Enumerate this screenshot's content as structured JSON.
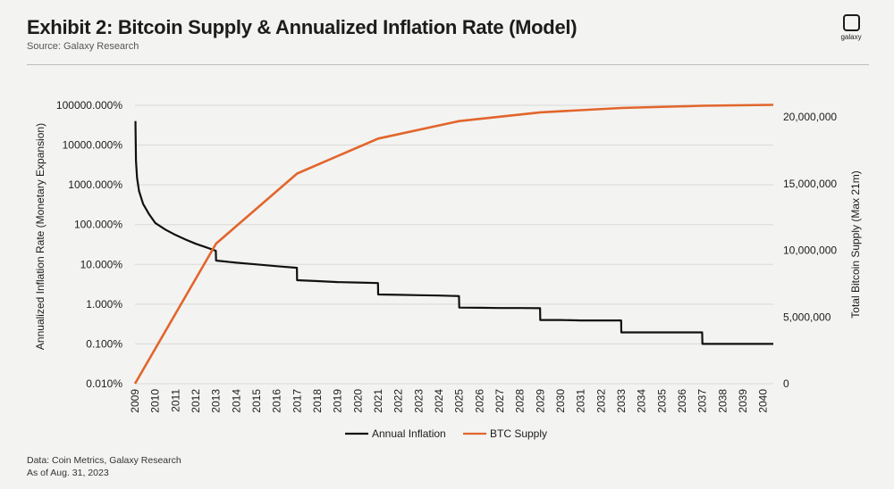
{
  "header": {
    "title": "Exhibit 2: Bitcoin Supply & Annualized Inflation Rate (Model)",
    "source": "Source: Galaxy Research",
    "logo_text": "galaxy",
    "logo_icon": "galaxy-logo-icon"
  },
  "footer": {
    "data_line": "Data: Coin Metrics, Galaxy Research",
    "date_line": "As of Aug. 31, 2023"
  },
  "chart_data": {
    "type": "line",
    "title": "Exhibit 2: Bitcoin Supply & Annualized Inflation Rate (Model)",
    "xlabel": "",
    "ylabel_left": "Annualized Inflation Rate (Monetary Expansion)",
    "ylabel_right": "Total Bitcoin Supply (Max 21m)",
    "x_categories": [
      "2009",
      "2010",
      "2011",
      "2012",
      "2013",
      "2014",
      "2015",
      "2016",
      "2017",
      "2018",
      "2019",
      "2020",
      "2021",
      "2022",
      "2023",
      "2024",
      "2025",
      "2026",
      "2027",
      "2028",
      "2029",
      "2030",
      "2031",
      "2032",
      "2033",
      "2034",
      "2035",
      "2036",
      "2037",
      "2038",
      "2039",
      "2040"
    ],
    "xlim": [
      2009,
      2040.5
    ],
    "y_left": {
      "scale": "log",
      "ylim": [
        0.01,
        100000
      ],
      "ticks": [
        0.01,
        0.1,
        1,
        10,
        100,
        1000,
        10000,
        100000
      ],
      "tick_labels": [
        "0.010%",
        "0.100%",
        "1.000%",
        "10.000%",
        "100.000%",
        "1000.000%",
        "10000.000%",
        "100000.000%"
      ]
    },
    "y_right": {
      "scale": "linear",
      "ylim": [
        0,
        21000000
      ],
      "ticks": [
        0,
        5000000,
        10000000,
        15000000,
        20000000
      ],
      "tick_labels": [
        "0",
        "5,000,000",
        "10,000,000",
        "15,000,000",
        "20,000,000"
      ]
    },
    "legend_position": "bottom-center",
    "series": [
      {
        "name": "Annual Inflation",
        "axis": "left",
        "color": "#111111",
        "points": [
          [
            2009.02,
            40000
          ],
          [
            2009.05,
            4000
          ],
          [
            2009.1,
            1500
          ],
          [
            2009.2,
            700
          ],
          [
            2009.4,
            330
          ],
          [
            2009.7,
            180
          ],
          [
            2010,
            110
          ],
          [
            2010.5,
            75
          ],
          [
            2011,
            55
          ],
          [
            2011.5,
            42
          ],
          [
            2012,
            33
          ],
          [
            2012.5,
            27
          ],
          [
            2012.99,
            22
          ],
          [
            2013,
            12.5
          ],
          [
            2014,
            11
          ],
          [
            2015,
            10
          ],
          [
            2016,
            9
          ],
          [
            2016.99,
            8.2
          ],
          [
            2017,
            4
          ],
          [
            2018,
            3.8
          ],
          [
            2019,
            3.6
          ],
          [
            2020,
            3.5
          ],
          [
            2020.99,
            3.4
          ],
          [
            2021,
            1.75
          ],
          [
            2022,
            1.72
          ],
          [
            2023,
            1.68
          ],
          [
            2024,
            1.65
          ],
          [
            2024.99,
            1.6
          ],
          [
            2025,
            0.82
          ],
          [
            2026,
            0.81
          ],
          [
            2027,
            0.8
          ],
          [
            2028,
            0.8
          ],
          [
            2028.99,
            0.79
          ],
          [
            2029,
            0.4
          ],
          [
            2030,
            0.4
          ],
          [
            2031,
            0.39
          ],
          [
            2032,
            0.39
          ],
          [
            2032.99,
            0.39
          ],
          [
            2033,
            0.195
          ],
          [
            2034,
            0.195
          ],
          [
            2035,
            0.195
          ],
          [
            2036,
            0.195
          ],
          [
            2036.99,
            0.195
          ],
          [
            2037,
            0.1
          ],
          [
            2038,
            0.1
          ],
          [
            2039,
            0.1
          ],
          [
            2040,
            0.1
          ],
          [
            2040.5,
            0.1
          ]
        ]
      },
      {
        "name": "BTC Supply",
        "axis": "right",
        "color": "#e2652c",
        "points": [
          [
            2009,
            0
          ],
          [
            2013,
            10500000
          ],
          [
            2017,
            15750000
          ],
          [
            2021,
            18375000
          ],
          [
            2025,
            19687500
          ],
          [
            2029,
            20343750
          ],
          [
            2033,
            20671875
          ],
          [
            2037,
            20835938
          ],
          [
            2040.5,
            20900000
          ]
        ]
      }
    ]
  }
}
